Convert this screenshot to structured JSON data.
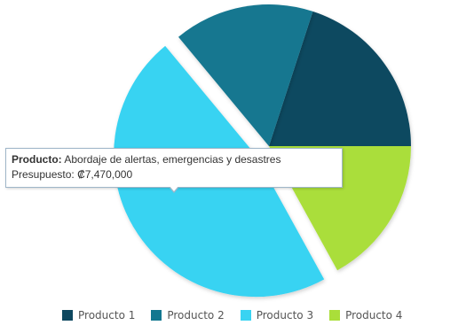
{
  "chart_data": {
    "type": "pie",
    "series": [
      {
        "name": "Producto 1",
        "value": 20,
        "color": "#0e4860"
      },
      {
        "name": "Producto 2",
        "value": 16,
        "color": "#127790"
      },
      {
        "name": "Producto 3",
        "value": 47,
        "color": "#39d3f2",
        "exploded": true
      },
      {
        "name": "Producto 4",
        "value": 17,
        "color": "#aade3a"
      }
    ],
    "legend_position": "bottom",
    "tooltip": {
      "product_label": "Producto:",
      "product_value": "Abordaje de alertas, emergencias y desastres",
      "budget_label": "Presupuesto:",
      "budget_value": "₡7,470,000"
    }
  }
}
